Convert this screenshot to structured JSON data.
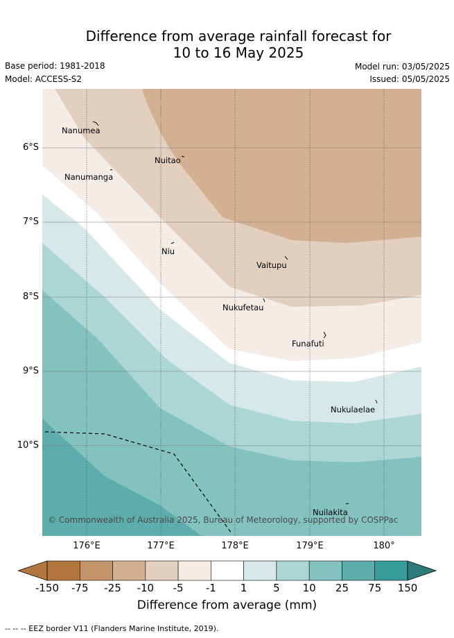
{
  "title_line1": "Difference from average rainfall forecast for",
  "title_line2": "10 to 16 May 2025",
  "base_period": "Base period: 1981-2018",
  "model": "Model: ACCESS-S2",
  "model_run": "Model run: 03/05/2025",
  "issued": "Issued: 05/05/2025",
  "copyright": "© Commonwealth of Australia 2025, Bureau of Meteorology, supported by COSPPac",
  "lat_ticks": [
    "6°S",
    "7°S",
    "8°S",
    "9°S",
    "10°S"
  ],
  "lon_ticks": [
    "176°E",
    "177°E",
    "178°E",
    "179°E",
    "180°"
  ],
  "places": [
    {
      "name": "Nanumea"
    },
    {
      "name": "Nuitao"
    },
    {
      "name": "Nanumanga"
    },
    {
      "name": "Niu"
    },
    {
      "name": "Vaitupu"
    },
    {
      "name": "Nukufetau"
    },
    {
      "name": "Funafuti"
    },
    {
      "name": "Nukulaelae"
    },
    {
      "name": "Nuilakita"
    }
  ],
  "colorbar": {
    "title": "Difference from average (mm)",
    "labels": [
      "-150",
      "-75",
      "-25",
      "-10",
      "-5",
      "-1",
      "1",
      "5",
      "10",
      "25",
      "75",
      "150"
    ],
    "colors": [
      "#b1773f",
      "#c3936a",
      "#d2b192",
      "#e3cfbe",
      "#f4ece6",
      "#ffffff",
      "#d6e9e8",
      "#acd6d4",
      "#84c2c0",
      "#5cadab",
      "#369d9a"
    ],
    "under_color": "#b1773f",
    "over_color": "#2e7a7a"
  },
  "legend": "--  --  -- EEZ border V11 (Flanders Marine Institute, 2019)."
}
